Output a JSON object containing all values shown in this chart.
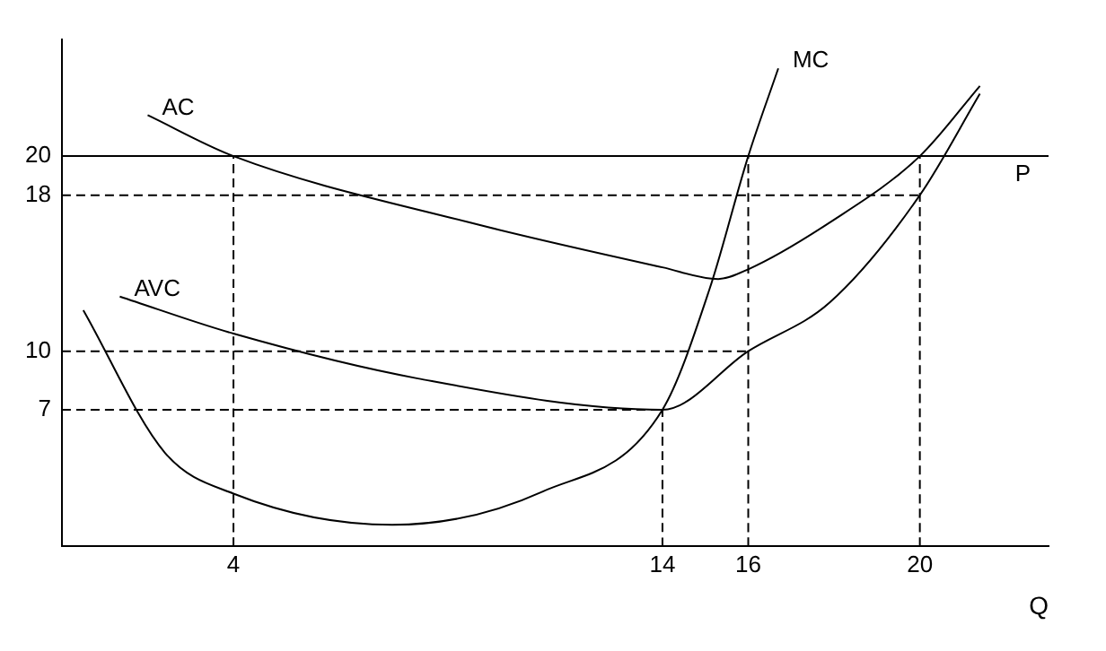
{
  "chart_data": {
    "type": "line",
    "xlabel": "Q",
    "xlim": [
      0,
      23
    ],
    "ylim": [
      0,
      26
    ],
    "xticks": [
      4,
      14,
      16,
      20
    ],
    "yticks": [
      7,
      10,
      18,
      20
    ],
    "grid": false,
    "legend": false,
    "marker": "none",
    "ref_lines": [
      {
        "axis": "y",
        "value": 20,
        "label": "P",
        "color": "#000000"
      }
    ],
    "series": [
      {
        "name": "AC",
        "color": "#000000",
        "x": [
          2,
          4,
          9.5,
          14,
          15.3,
          16,
          17.9,
          20,
          21.4
        ],
        "values": [
          22.1,
          20,
          16.6,
          14.3,
          13.7,
          14.2,
          16.6,
          20,
          23.6
        ]
      },
      {
        "name": "AVC",
        "color": "#000000",
        "x": [
          1.35,
          4,
          8.3,
          14,
          16,
          17.9,
          20,
          21.4
        ],
        "values": [
          12.8,
          10.9,
          8.6,
          7,
          10,
          12.5,
          18,
          23.2
        ]
      },
      {
        "name": "MC",
        "color": "#000000",
        "x": [
          16.7,
          16,
          15.1,
          14,
          11.2,
          7.7,
          4,
          2.4,
          0.5
        ],
        "values": [
          24.5,
          20,
          13.2,
          7,
          2.8,
          1.1,
          2.7,
          4.8,
          12.1
        ]
      },
      {
        "color": "#000000",
        "line_style": "dashed",
        "x": [
          0,
          20
        ],
        "values": [
          18,
          18
        ]
      },
      {
        "color": "#000000",
        "line_style": "dashed",
        "x": [
          0,
          16
        ],
        "values": [
          10,
          10
        ]
      },
      {
        "color": "#000000",
        "line_style": "dashed",
        "x": [
          0,
          14
        ],
        "values": [
          7,
          7
        ]
      },
      {
        "color": "#000000",
        "line_style": "dashed",
        "x": [
          4,
          4
        ],
        "values": [
          0,
          20
        ]
      },
      {
        "color": "#000000",
        "line_style": "dashed",
        "x": [
          14,
          14
        ],
        "values": [
          0,
          7
        ]
      },
      {
        "color": "#000000",
        "line_style": "dashed",
        "x": [
          16,
          16
        ],
        "values": [
          0,
          20
        ]
      },
      {
        "color": "#000000",
        "line_style": "dashed",
        "x": [
          20,
          20
        ],
        "values": [
          0,
          20
        ]
      }
    ]
  }
}
